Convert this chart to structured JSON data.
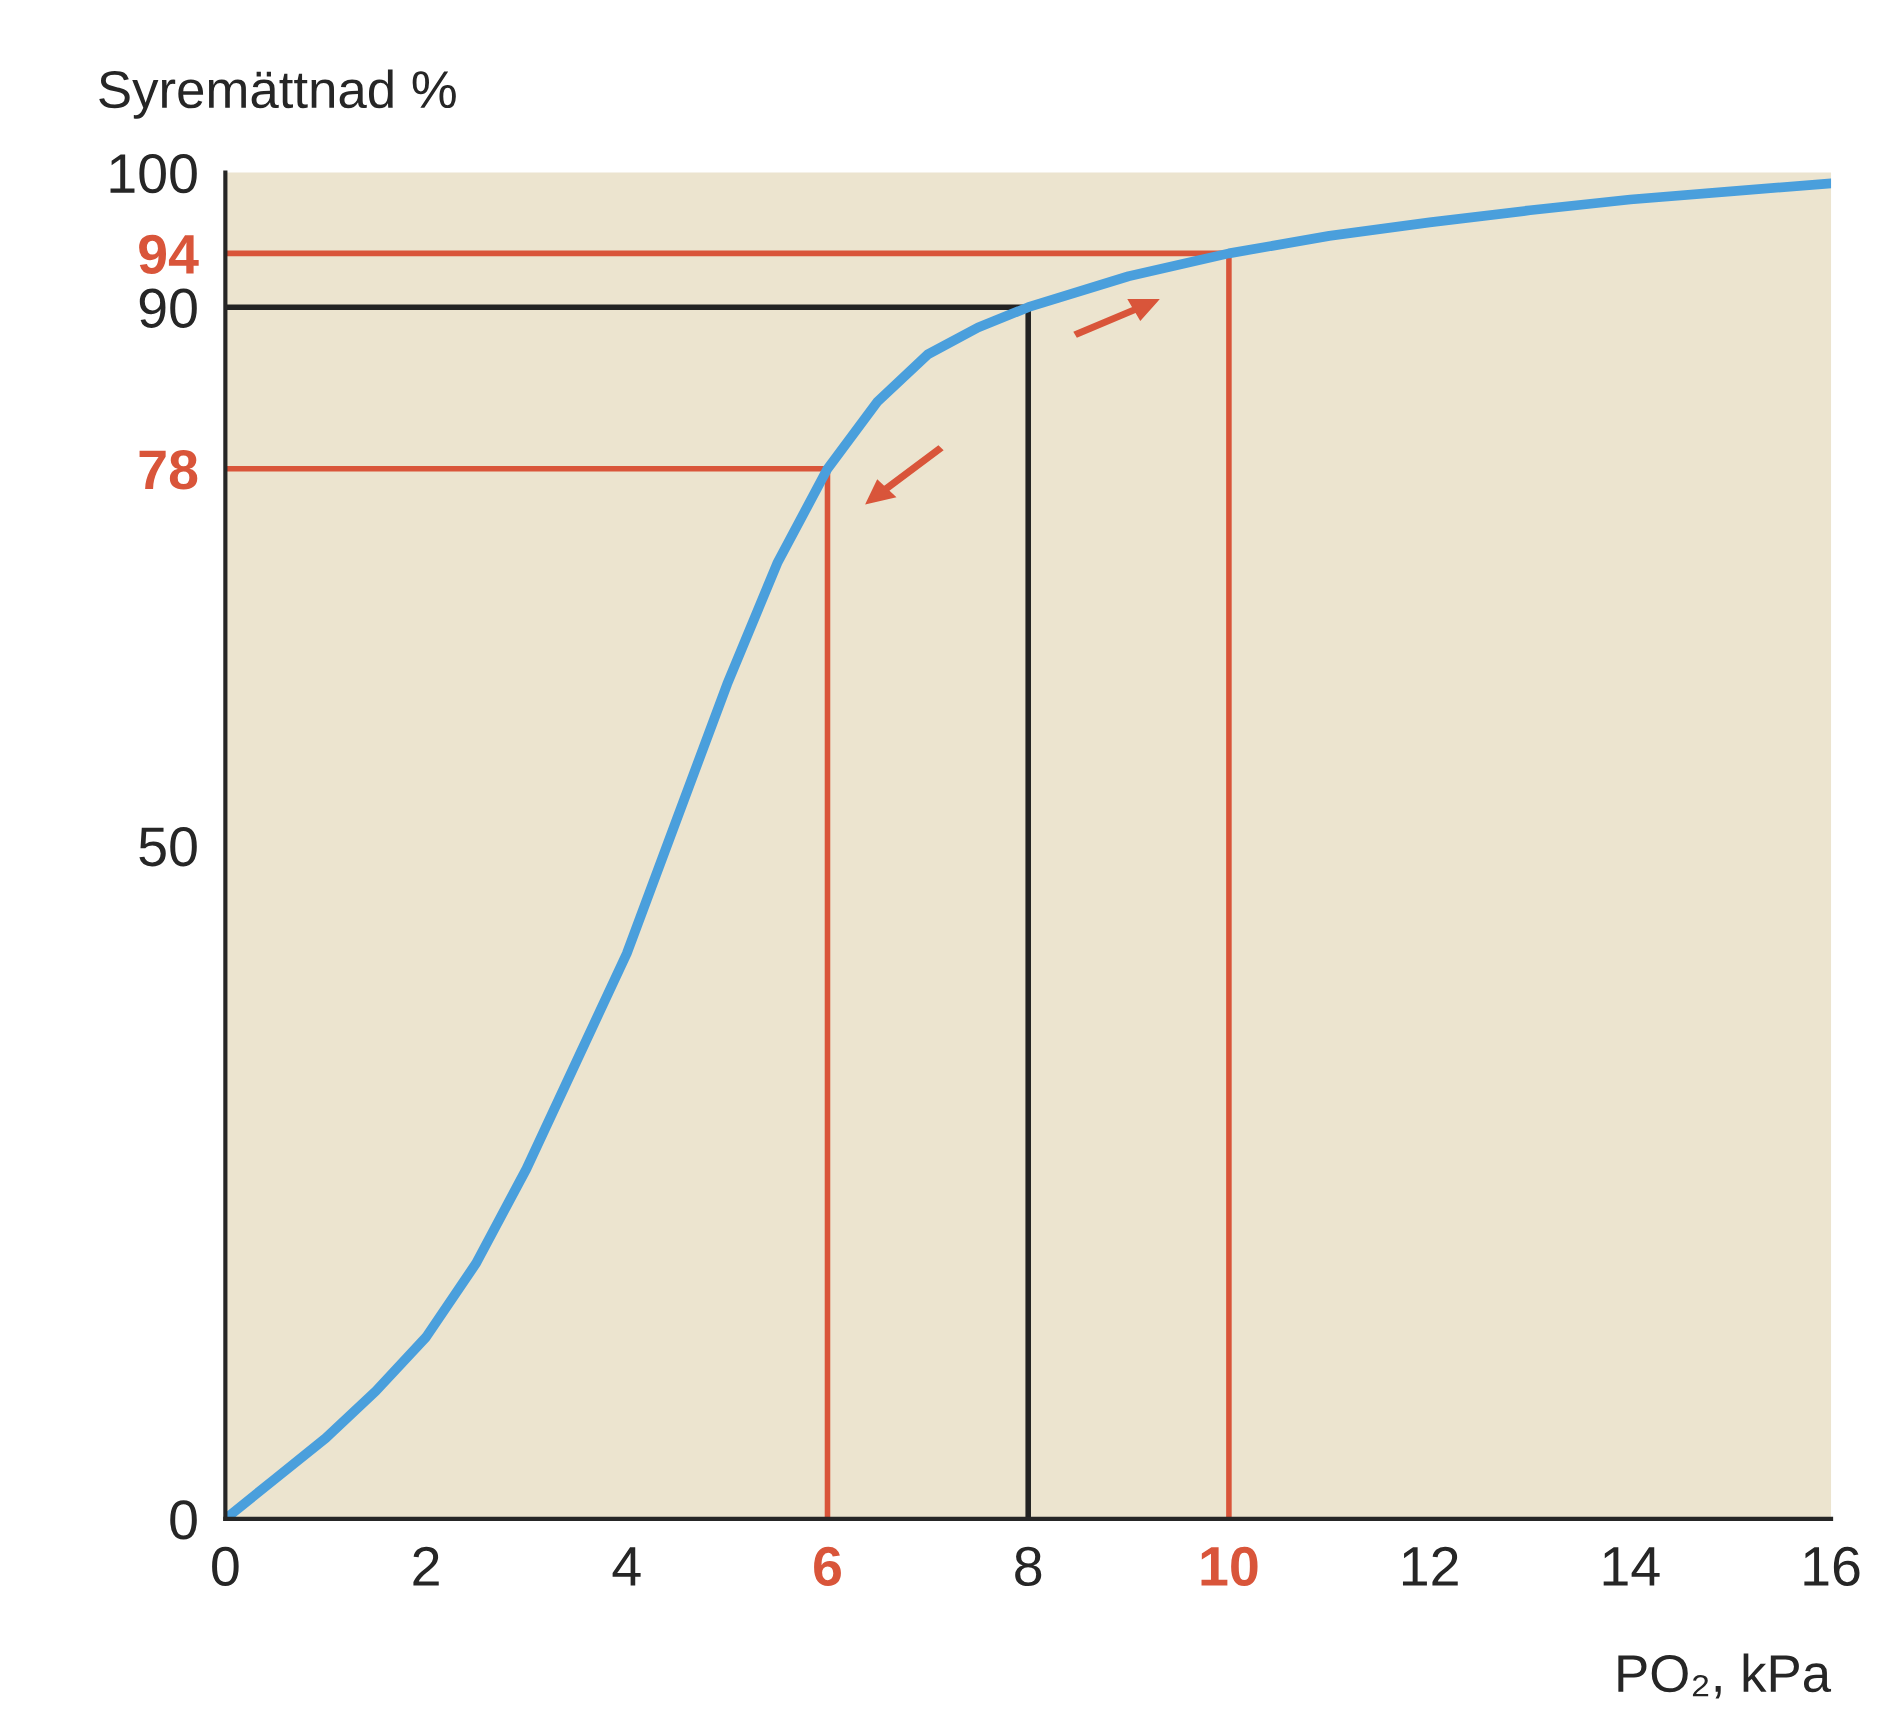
{
  "chart_data": {
    "type": "line",
    "ylabel": "Syremättnad %",
    "xlabel": "PO₂, kPa",
    "x": [
      0,
      0.5,
      1,
      1.5,
      2,
      2.5,
      3,
      3.5,
      4,
      4.5,
      5,
      5.5,
      6,
      6.5,
      7,
      7.5,
      8,
      9,
      10,
      11,
      12,
      13,
      14,
      15,
      16
    ],
    "series": [
      {
        "color": "#4a9fdc",
        "values": [
          0,
          3,
          6,
          9.5,
          13.5,
          19,
          26,
          34,
          42,
          52,
          62,
          71,
          78,
          83,
          86.5,
          88.5,
          90,
          92.3,
          94,
          95.3,
          96.3,
          97.2,
          98,
          98.6,
          99.2
        ]
      }
    ],
    "xlim": [
      0,
      16
    ],
    "ylim": [
      0,
      100
    ],
    "xticks": [
      0,
      2,
      4,
      6,
      8,
      10,
      12,
      14,
      16
    ],
    "yticks": [
      0,
      50,
      78,
      90,
      94,
      100
    ],
    "ref_lines": [
      {
        "axis": "y",
        "value": 94,
        "color": "#d9553a"
      },
      {
        "axis": "x",
        "value": 10,
        "color": "#d9553a"
      },
      {
        "axis": "y",
        "value": 90,
        "color": "#222222"
      },
      {
        "axis": "x",
        "value": 8,
        "color": "#222222"
      },
      {
        "axis": "y",
        "value": 78,
        "color": "#d9553a"
      },
      {
        "axis": "x",
        "value": 6,
        "color": "#d9553a"
      }
    ],
    "grid": false,
    "legend": false,
    "marker": "none",
    "line_style": "solid"
  }
}
